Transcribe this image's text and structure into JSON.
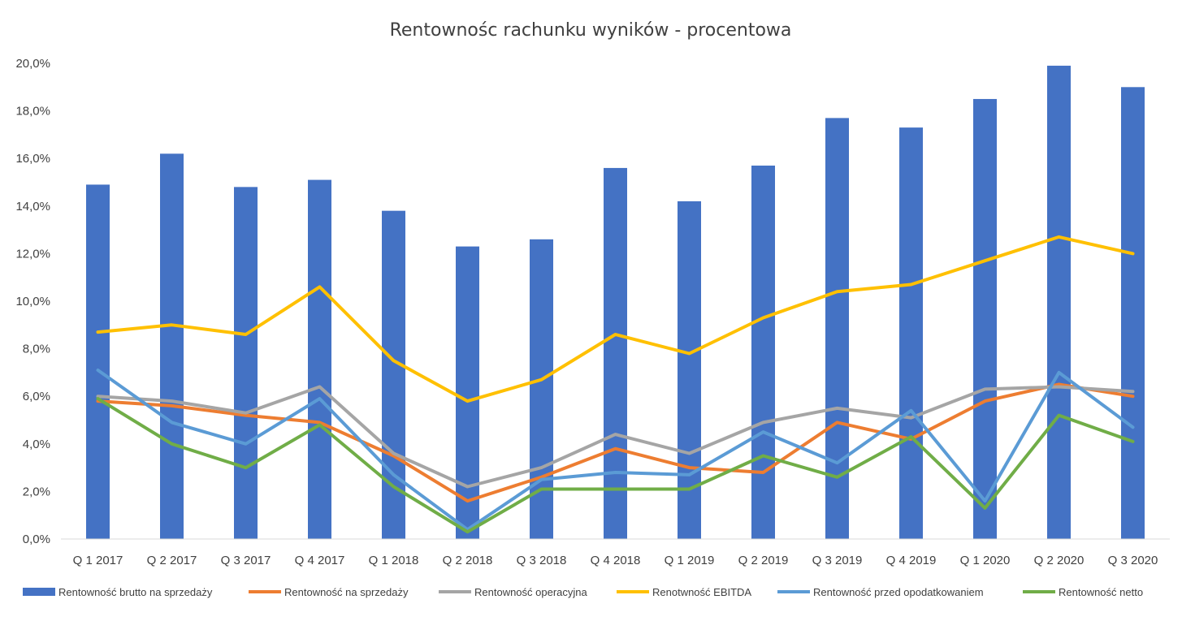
{
  "chart_data": {
    "type": "bar",
    "title": "Rentownośc rachunku wyników - procentowa",
    "categories": [
      "Q 1 2017",
      "Q 2 2017",
      "Q 3 2017",
      "Q 4 2017",
      "Q 1 2018",
      "Q 2 2018",
      "Q 3 2018",
      "Q 4 2018",
      "Q 1 2019",
      "Q 2 2019",
      "Q 3 2019",
      "Q 4 2019",
      "Q 1 2020",
      "Q 2 2020",
      "Q 3 2020"
    ],
    "ylim": [
      0,
      20
    ],
    "yticks": [
      "0,0%",
      "2,0%",
      "4,0%",
      "6,0%",
      "8,0%",
      "10,0%",
      "12,0%",
      "14,0%",
      "16,0%",
      "18,0%",
      "20,0%"
    ],
    "grid": false,
    "legend_position": "bottom",
    "series": [
      {
        "name": "Rentowność brutto na sprzedaży",
        "type": "bar",
        "color": "#4472C4",
        "values": [
          14.9,
          16.2,
          14.8,
          15.1,
          13.8,
          12.3,
          12.6,
          15.6,
          14.2,
          15.7,
          17.7,
          17.3,
          18.5,
          19.9,
          19.0
        ]
      },
      {
        "name": "Rentowność na sprzedaży",
        "type": "line",
        "color": "#ED7D31",
        "values": [
          5.8,
          5.6,
          5.2,
          4.9,
          3.5,
          1.6,
          2.6,
          3.8,
          3.0,
          2.8,
          4.9,
          4.2,
          5.8,
          6.5,
          6.0
        ]
      },
      {
        "name": "Rentowność operacyjna",
        "type": "line",
        "color": "#A5A5A5",
        "values": [
          6.0,
          5.8,
          5.3,
          6.4,
          3.6,
          2.2,
          3.0,
          4.4,
          3.6,
          4.9,
          5.5,
          5.1,
          6.3,
          6.4,
          6.2
        ]
      },
      {
        "name": "Renotwność EBITDA",
        "type": "line",
        "color": "#FFC000",
        "values": [
          8.7,
          9.0,
          8.6,
          10.6,
          7.5,
          5.8,
          6.7,
          8.6,
          7.8,
          9.3,
          10.4,
          10.7,
          11.7,
          12.7,
          12.0
        ]
      },
      {
        "name": "Rentowność przed opodatkowaniem",
        "type": "line",
        "color": "#5B9BD5",
        "values": [
          7.1,
          4.9,
          4.0,
          5.9,
          2.7,
          0.4,
          2.5,
          2.8,
          2.7,
          4.5,
          3.2,
          5.4,
          1.6,
          7.0,
          4.7
        ]
      },
      {
        "name": "Rentowność netto",
        "type": "line",
        "color": "#70AD47",
        "values": [
          5.9,
          4.0,
          3.0,
          4.8,
          2.2,
          0.3,
          2.1,
          2.1,
          2.1,
          3.5,
          2.6,
          4.3,
          1.3,
          5.2,
          4.1
        ]
      }
    ]
  }
}
